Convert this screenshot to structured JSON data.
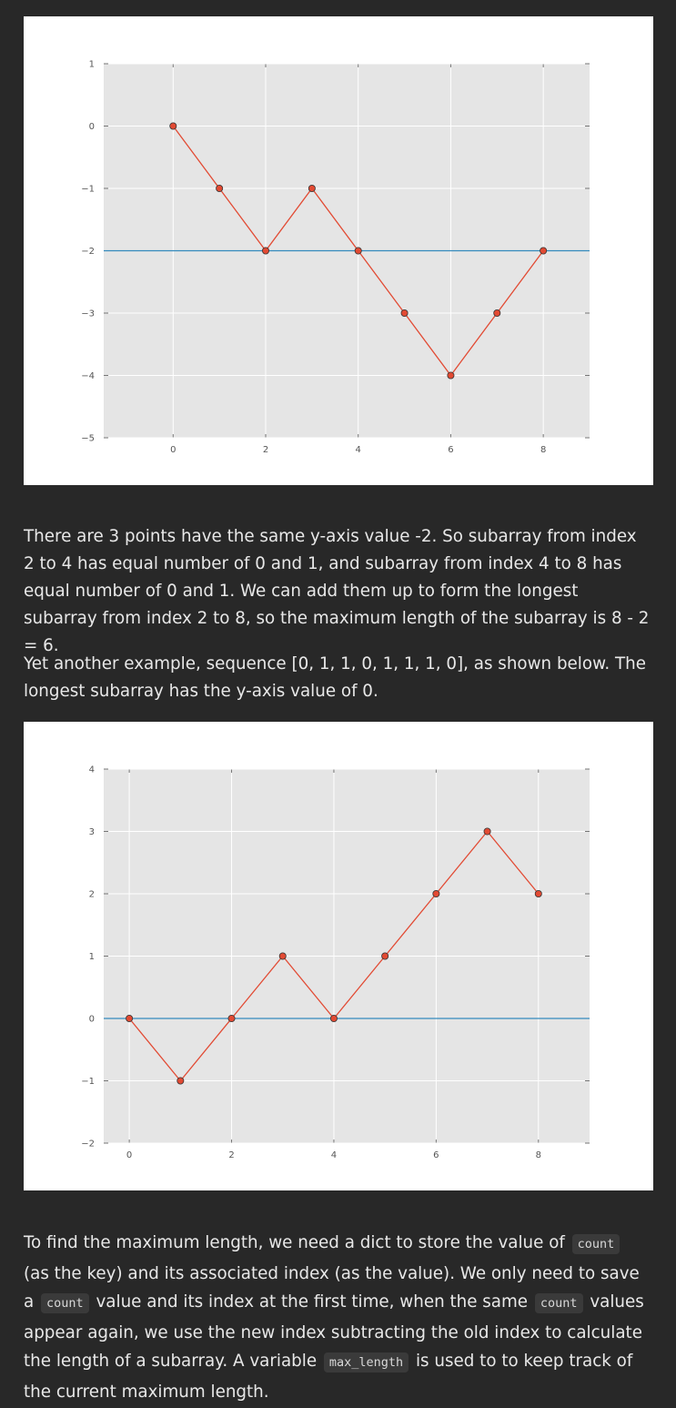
{
  "chart_data": [
    {
      "type": "line",
      "x": [
        0,
        1,
        2,
        3,
        4,
        5,
        6,
        7,
        8
      ],
      "y": [
        0,
        -1,
        -2,
        -1,
        -2,
        -3,
        -4,
        -3,
        -2
      ],
      "hline": -2,
      "xlim": [
        -1.5,
        9
      ],
      "ylim": [
        -5,
        1
      ],
      "xticks": [
        0,
        2,
        4,
        6,
        8
      ],
      "yticks": [
        1,
        0,
        -1,
        -2,
        -3,
        -4,
        -5
      ],
      "xtick_labels": [
        "0",
        "2",
        "4",
        "6",
        "8"
      ],
      "ytick_labels": [
        "1",
        "0",
        "−1",
        "−2",
        "−3",
        "−4",
        "−5"
      ],
      "grid": true,
      "colors": {
        "line": "#e24a33",
        "marker": "#e24a33",
        "hline": "#348abd",
        "background": "#e5e5e5",
        "grid": "#ffffff"
      }
    },
    {
      "type": "line",
      "x": [
        0,
        1,
        2,
        3,
        4,
        5,
        6,
        7,
        8
      ],
      "y": [
        0,
        -1,
        0,
        1,
        0,
        1,
        2,
        3,
        2
      ],
      "hline": 0,
      "xlim": [
        -0.5,
        9
      ],
      "ylim": [
        -2,
        4
      ],
      "xticks": [
        0,
        2,
        4,
        6,
        8
      ],
      "yticks": [
        4,
        3,
        2,
        1,
        0,
        -1,
        -2
      ],
      "xtick_labels": [
        "0",
        "2",
        "4",
        "6",
        "8"
      ],
      "ytick_labels": [
        "4",
        "3",
        "2",
        "1",
        "0",
        "−1",
        "−2"
      ],
      "grid": true,
      "colors": {
        "line": "#e24a33",
        "marker": "#e24a33",
        "hline": "#348abd",
        "background": "#e5e5e5",
        "grid": "#ffffff"
      }
    }
  ],
  "text": {
    "para1": "There are 3 points have the same y-axis value -2. So subarray from index 2 to 4 has equal number of 0 and 1, and subarray from index 4 to 8 has equal number of 0 and 1. We can add them up to form the longest subarray from index 2 to 8, so the maximum length of the subarray is 8 - 2 = 6.",
    "para2": "Yet another example, sequence [0, 1, 1, 0, 1, 1, 1, 0], as shown below. The longest subarray has the y-axis value of 0.",
    "para3_a": "To find the maximum length, we need a dict to store the value of ",
    "para3_code1": "count",
    "para3_b": " (as the key) and its associated index (as the value). We only need to save a ",
    "para3_code2": "count",
    "para3_c": " value and its index at the first time, when the same ",
    "para3_code3": "count",
    "para3_d": " values appear again, we use the new index subtracting the old index to calculate the length of a subarray. A variable ",
    "para3_code4": "max_length",
    "para3_e": " is used to to keep track of the current maximum length."
  }
}
